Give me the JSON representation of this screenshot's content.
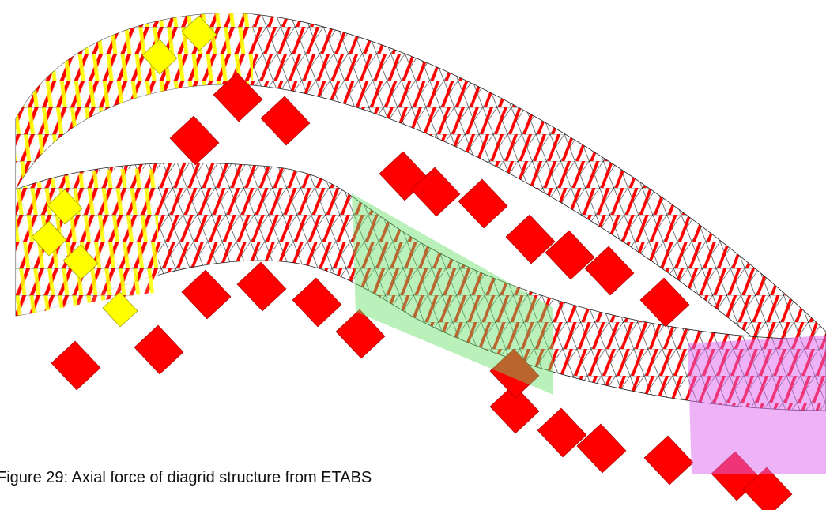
{
  "figure": {
    "caption": "Figure 29: Axial force of diagrid structure from ETABS"
  }
}
